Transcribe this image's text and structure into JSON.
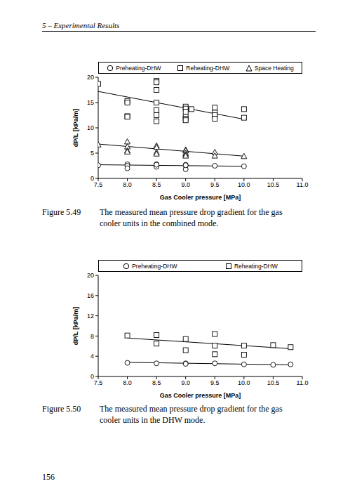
{
  "header": "5 – Experimental Results",
  "page_number": "156",
  "captions": [
    {
      "label": "Figure 5.49",
      "text": "The measured mean pressure drop gradient for the gas cooler units in the combined mode."
    },
    {
      "label": "Figure 5.50",
      "text": "The measured mean pressure drop gradient for the gas cooler units in the DHW mode."
    }
  ],
  "chart_data": [
    {
      "type": "scatter",
      "x_label": "Gas Cooler pressure [MPa]",
      "y_label": "dP/L [kPa/m]",
      "xlim": [
        7.5,
        11
      ],
      "xticks": [
        7.5,
        {
          "value": 8,
          "label": "8.0"
        },
        8.5,
        {
          "value": 9,
          "label": "9.0"
        },
        9.5,
        {
          "value": 10,
          "label": "10.0"
        },
        10.5,
        {
          "value": 11,
          "label": "11.0"
        }
      ],
      "ylim": [
        0,
        20
      ],
      "yticks": [
        0,
        5,
        10,
        15,
        20
      ],
      "grid": false,
      "legend": "top",
      "series": [
        {
          "name": "Preheating-DHW",
          "color": "#000000",
          "marker": "circle",
          "x": [
            7.5,
            8,
            8,
            8,
            8.5,
            8.5,
            8.5,
            8.5,
            9,
            9,
            9,
            9,
            9.5,
            10
          ],
          "values": [
            2.6,
            2.8,
            2.5,
            2,
            2.8,
            2.5,
            2.3,
            2.7,
            2.5,
            2.7,
            1.8,
            2.6,
            2.5,
            2.4
          ],
          "trend_x": [
            7.5,
            10
          ],
          "trend_values": [
            2.7,
            2.4
          ]
        },
        {
          "name": "Reheating-DHW",
          "color": "#000000",
          "marker": "square",
          "x": [
            7.5,
            8,
            8,
            8,
            8,
            8.5,
            8.5,
            8.5,
            8.5,
            8.5,
            8.5,
            8.5,
            9,
            9,
            9,
            9,
            9,
            9,
            9.1,
            9.5,
            9.5,
            9.5,
            9.5,
            10,
            10
          ],
          "values": [
            18.7,
            15.3,
            15,
            12.3,
            12.2,
            19.3,
            19,
            17.5,
            15,
            13.5,
            12.5,
            11.3,
            14.2,
            13.8,
            13.2,
            12.2,
            11.8,
            11.5,
            13.7,
            14,
            13,
            12.5,
            11.8,
            13.7,
            12
          ],
          "trend_x": [
            7.5,
            10
          ],
          "trend_values": [
            17.2,
            11.7
          ]
        },
        {
          "name": "Space Heating",
          "color": "#000000",
          "marker": "triangle",
          "x": [
            7.5,
            8,
            8,
            8,
            8,
            8.5,
            8.5,
            8.5,
            8.5,
            9,
            9,
            9,
            9,
            9,
            9.5,
            9.5,
            10
          ],
          "values": [
            6.7,
            7.3,
            6.3,
            5.5,
            5.3,
            6.5,
            6.2,
            5.2,
            4.9,
            5.7,
            5.5,
            5,
            4.7,
            4.5,
            5.2,
            4.5,
            4.4
          ],
          "trend_x": [
            7.5,
            10
          ],
          "trend_values": [
            6.8,
            4.4
          ]
        }
      ]
    },
    {
      "type": "scatter",
      "x_label": "Gas Cooler pressure [MPa]",
      "y_label": "dP/L [kPa/m]",
      "xlim": [
        7.5,
        11
      ],
      "xticks": [
        7.5,
        {
          "value": 8,
          "label": "8.0"
        },
        8.5,
        {
          "value": 9,
          "label": "9.0"
        },
        9.5,
        {
          "value": 10,
          "label": "10.0"
        },
        10.5,
        {
          "value": 11,
          "label": "11.0"
        }
      ],
      "ylim": [
        0,
        20
      ],
      "yticks": [
        0,
        4,
        8,
        12,
        16,
        20
      ],
      "grid": false,
      "legend": "top",
      "series": [
        {
          "name": "Preheating-DHW",
          "color": "#000000",
          "marker": "circle",
          "x": [
            8,
            8.5,
            9,
            9,
            9.5,
            10,
            10.5,
            10.8
          ],
          "values": [
            2.7,
            2.6,
            2.6,
            2.5,
            2.6,
            2.4,
            2.3,
            2.4
          ],
          "trend_x": [
            8,
            10.8
          ],
          "trend_values": [
            2.8,
            2.3
          ]
        },
        {
          "name": "Reheating-DHW",
          "color": "#000000",
          "marker": "square",
          "x": [
            8,
            8.5,
            8.5,
            9,
            9,
            9.5,
            9.5,
            9.5,
            10,
            10,
            10.5,
            10.8
          ],
          "values": [
            8.1,
            8.2,
            6.5,
            7.4,
            5.2,
            8.4,
            6.1,
            4.4,
            6.1,
            4.3,
            6.2,
            5.8
          ],
          "trend_x": [
            8,
            10.8
          ],
          "trend_values": [
            7.6,
            5.5
          ]
        }
      ]
    }
  ]
}
